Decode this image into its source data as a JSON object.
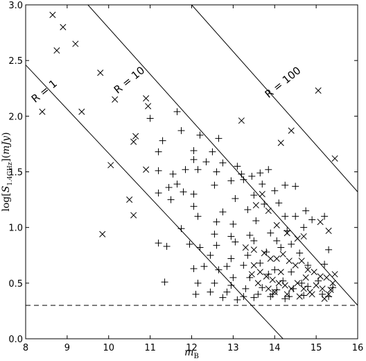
{
  "chart_data": {
    "type": "scatter",
    "title": "",
    "xlabel": "m_B",
    "ylabel": "log[S_1.4GHz](mJy)",
    "xlim": [
      8,
      16
    ],
    "ylim": [
      0.0,
      3.0
    ],
    "x_ticks": [
      "8",
      "9",
      "10",
      "11",
      "12",
      "13",
      "14",
      "15",
      "16"
    ],
    "y_ticks": [
      "0.0",
      "0.5",
      "1.0",
      "1.5",
      "2.0",
      "2.5",
      "3.0"
    ],
    "grid": false,
    "threshold_line": {
      "y": 0.3,
      "style": "dashed"
    },
    "reference_lines": [
      {
        "label": "R = 1",
        "points": [
          [
            8.0,
            2.46
          ],
          [
            14.2,
            0.0
          ]
        ]
      },
      {
        "label": "R = 10",
        "points": [
          [
            9.5,
            3.0
          ],
          [
            16.0,
            0.3
          ]
        ]
      },
      {
        "label": "R = 100",
        "points": [
          [
            12.0,
            3.0
          ],
          [
            16.0,
            1.32
          ]
        ]
      }
    ],
    "series": [
      {
        "marker": "x",
        "points": [
          [
            8.65,
            2.91
          ],
          [
            8.75,
            2.59
          ],
          [
            8.9,
            2.8
          ],
          [
            9.2,
            2.65
          ],
          [
            9.8,
            2.39
          ],
          [
            8.4,
            2.04
          ],
          [
            9.35,
            2.04
          ],
          [
            10.15,
            2.15
          ],
          [
            10.9,
            2.16
          ],
          [
            10.95,
            2.09
          ],
          [
            10.65,
            1.82
          ],
          [
            10.6,
            1.77
          ],
          [
            10.05,
            1.56
          ],
          [
            10.9,
            1.52
          ],
          [
            10.5,
            1.25
          ],
          [
            10.6,
            1.11
          ],
          [
            9.85,
            0.94
          ],
          [
            13.2,
            1.96
          ],
          [
            14.4,
            1.87
          ],
          [
            14.15,
            1.76
          ],
          [
            15.05,
            2.23
          ],
          [
            15.45,
            1.62
          ],
          [
            13.7,
            1.3
          ],
          [
            13.55,
            1.2
          ],
          [
            13.85,
            1.15
          ],
          [
            14.05,
            1.02
          ],
          [
            14.3,
            0.95
          ],
          [
            14.55,
            0.9
          ],
          [
            14.7,
            0.92
          ],
          [
            15.1,
            1.05
          ],
          [
            15.3,
            0.97
          ],
          [
            13.3,
            0.82
          ],
          [
            13.5,
            0.8
          ],
          [
            13.75,
            0.77
          ],
          [
            13.9,
            0.72
          ],
          [
            14.05,
            0.72
          ],
          [
            14.2,
            0.76
          ],
          [
            14.35,
            0.7
          ],
          [
            14.5,
            0.66
          ],
          [
            14.65,
            0.7
          ],
          [
            14.8,
            0.62
          ],
          [
            14.95,
            0.6
          ],
          [
            15.1,
            0.56
          ],
          [
            15.25,
            0.55
          ],
          [
            15.4,
            0.5
          ],
          [
            13.5,
            0.66
          ],
          [
            13.65,
            0.6
          ],
          [
            13.8,
            0.56
          ],
          [
            13.95,
            0.53
          ],
          [
            14.1,
            0.5
          ],
          [
            14.25,
            0.48
          ],
          [
            14.4,
            0.45
          ],
          [
            14.55,
            0.5
          ],
          [
            14.7,
            0.45
          ],
          [
            14.85,
            0.42
          ],
          [
            15.0,
            0.48
          ],
          [
            15.15,
            0.45
          ],
          [
            15.3,
            0.4
          ],
          [
            13.85,
            0.45
          ],
          [
            14.0,
            0.42
          ],
          [
            14.3,
            0.4
          ],
          [
            14.6,
            0.38
          ],
          [
            14.9,
            0.4
          ],
          [
            15.2,
            0.36
          ],
          [
            15.35,
            0.44
          ],
          [
            13.6,
            0.5
          ],
          [
            13.45,
            0.58
          ],
          [
            14.15,
            0.6
          ],
          [
            14.75,
            0.55
          ],
          [
            15.45,
            0.58
          ]
        ]
      },
      {
        "marker": "+",
        "points": [
          [
            11.0,
            1.98
          ],
          [
            11.65,
            2.04
          ],
          [
            11.75,
            1.87
          ],
          [
            12.2,
            1.83
          ],
          [
            12.65,
            1.8
          ],
          [
            11.3,
            1.78
          ],
          [
            11.2,
            1.68
          ],
          [
            12.05,
            1.69
          ],
          [
            12.5,
            1.68
          ],
          [
            12.75,
            1.58
          ],
          [
            12.35,
            1.59
          ],
          [
            12.05,
            1.61
          ],
          [
            11.85,
            1.52
          ],
          [
            12.15,
            1.52
          ],
          [
            12.6,
            1.5
          ],
          [
            11.55,
            1.48
          ],
          [
            11.2,
            1.51
          ],
          [
            13.45,
            1.46
          ],
          [
            13.65,
            1.49
          ],
          [
            13.85,
            1.52
          ],
          [
            13.1,
            1.55
          ],
          [
            13.2,
            1.48
          ],
          [
            13.7,
            1.39
          ],
          [
            13.25,
            1.43
          ],
          [
            12.95,
            1.42
          ],
          [
            11.65,
            1.39
          ],
          [
            11.45,
            1.36
          ],
          [
            12.05,
            1.3
          ],
          [
            11.8,
            1.32
          ],
          [
            11.2,
            1.31
          ],
          [
            11.5,
            1.25
          ],
          [
            12.55,
            1.38
          ],
          [
            13.05,
            1.26
          ],
          [
            13.5,
            1.29
          ],
          [
            14.0,
            1.33
          ],
          [
            14.25,
            1.38
          ],
          [
            14.5,
            1.37
          ],
          [
            14.1,
            1.22
          ],
          [
            14.25,
            1.1
          ],
          [
            14.75,
            1.15
          ],
          [
            14.9,
            1.07
          ],
          [
            15.2,
            1.1
          ],
          [
            12.05,
            1.19
          ],
          [
            12.15,
            1.1
          ],
          [
            12.75,
            1.14
          ],
          [
            13.35,
            1.16
          ],
          [
            13.75,
            1.21
          ],
          [
            12.6,
            1.05
          ],
          [
            13.0,
            1.03
          ],
          [
            13.55,
            1.06
          ],
          [
            14.5,
            1.1
          ],
          [
            11.75,
            0.99
          ],
          [
            12.55,
            0.94
          ],
          [
            12.95,
            0.92
          ],
          [
            13.4,
            0.93
          ],
          [
            13.9,
            0.95
          ],
          [
            14.3,
            0.97
          ],
          [
            14.7,
            1.0
          ],
          [
            11.95,
            0.85
          ],
          [
            12.2,
            0.82
          ],
          [
            12.6,
            0.84
          ],
          [
            13.05,
            0.87
          ],
          [
            13.5,
            0.88
          ],
          [
            14.05,
            0.88
          ],
          [
            14.4,
            0.85
          ],
          [
            11.2,
            0.86
          ],
          [
            11.4,
            0.83
          ],
          [
            12.45,
            0.75
          ],
          [
            12.95,
            0.72
          ],
          [
            13.35,
            0.75
          ],
          [
            13.8,
            0.78
          ],
          [
            14.15,
            0.82
          ],
          [
            14.6,
            0.77
          ],
          [
            15.3,
            0.8
          ],
          [
            12.3,
            0.65
          ],
          [
            12.65,
            0.62
          ],
          [
            12.85,
            0.65
          ],
          [
            13.25,
            0.66
          ],
          [
            13.65,
            0.68
          ],
          [
            14.0,
            0.62
          ],
          [
            14.4,
            0.6
          ],
          [
            14.8,
            0.66
          ],
          [
            15.2,
            0.67
          ],
          [
            12.05,
            0.63
          ],
          [
            13.0,
            0.55
          ],
          [
            13.4,
            0.55
          ],
          [
            13.85,
            0.58
          ],
          [
            14.2,
            0.52
          ],
          [
            14.65,
            0.5
          ],
          [
            15.05,
            0.52
          ],
          [
            12.15,
            0.5
          ],
          [
            12.55,
            0.5
          ],
          [
            12.95,
            0.48
          ],
          [
            13.3,
            0.45
          ],
          [
            13.7,
            0.46
          ],
          [
            14.05,
            0.44
          ],
          [
            14.45,
            0.45
          ],
          [
            14.8,
            0.47
          ],
          [
            11.35,
            0.51
          ],
          [
            12.1,
            0.4
          ],
          [
            12.45,
            0.42
          ],
          [
            12.85,
            0.42
          ],
          [
            13.25,
            0.38
          ],
          [
            13.6,
            0.4
          ],
          [
            13.95,
            0.4
          ],
          [
            14.35,
            0.38
          ],
          [
            14.7,
            0.39
          ],
          [
            15.15,
            0.4
          ],
          [
            15.4,
            0.46
          ],
          [
            12.75,
            0.37
          ],
          [
            13.1,
            0.35
          ],
          [
            13.5,
            0.37
          ],
          [
            13.9,
            0.38
          ],
          [
            14.25,
            0.36
          ],
          [
            15.3,
            0.38
          ]
        ]
      }
    ]
  }
}
